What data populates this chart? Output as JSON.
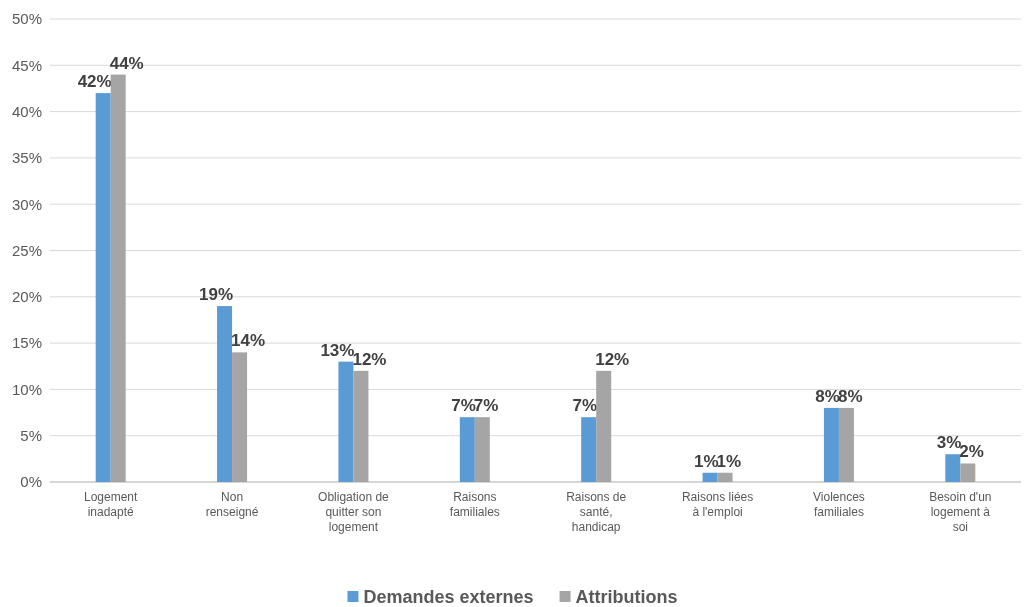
{
  "chart_data": {
    "type": "bar",
    "categories": [
      "Logement inadapté",
      "Non renseigné",
      "Obligation de quitter son logement",
      "Raisons familiales",
      "Raisons de santé, handicap",
      "Raisons liées à l'emploi",
      "Violences familiales",
      "Besoin d'un logement à soi"
    ],
    "series": [
      {
        "name": "Demandes externes",
        "color": "#5b9bd5",
        "values": [
          42,
          19,
          13,
          7,
          7,
          1,
          8,
          3
        ],
        "value_labels": [
          "42%",
          "19%",
          "13%",
          "7%",
          "7%",
          "1%",
          "8%",
          "3%"
        ]
      },
      {
        "name": "Attributions",
        "color": "#a5a5a5",
        "values": [
          44,
          14,
          12,
          7,
          12,
          1,
          8,
          2
        ],
        "value_labels": [
          "44%",
          "14%",
          "12%",
          "7%",
          "12%",
          "1%",
          "8%",
          "2%"
        ]
      }
    ],
    "ylim": [
      0,
      50
    ],
    "yticks": [
      {
        "value": 0,
        "label": "0%"
      },
      {
        "value": 5,
        "label": "5%"
      },
      {
        "value": 10,
        "label": "10%"
      },
      {
        "value": 15,
        "label": "15%"
      },
      {
        "value": 20,
        "label": "20%"
      },
      {
        "value": 25,
        "label": "25%"
      },
      {
        "value": 30,
        "label": "30%"
      },
      {
        "value": 35,
        "label": "35%"
      },
      {
        "value": 40,
        "label": "40%"
      },
      {
        "value": 45,
        "label": "45%"
      },
      {
        "value": 50,
        "label": "50%"
      }
    ],
    "grid": "y",
    "legend": "bottom"
  }
}
